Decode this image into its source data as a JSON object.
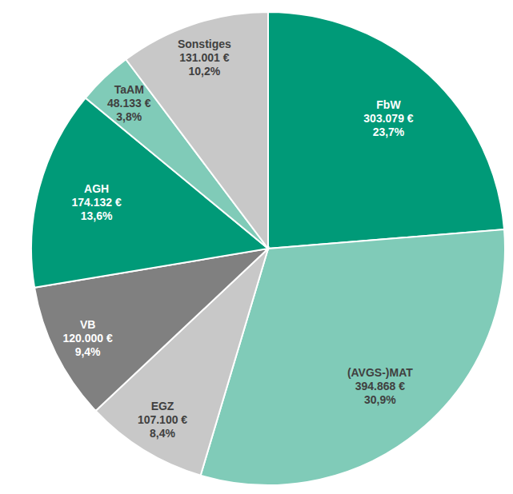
{
  "chart_data": {
    "type": "pie",
    "categories": [
      "FbW",
      "(AVGS-)MAT",
      "EGZ",
      "VB",
      "AGH",
      "TaAM",
      "Sonstiges"
    ],
    "values": [
      303079,
      394868,
      107100,
      120000,
      174132,
      48133,
      131001
    ],
    "value_labels": [
      "303.079 €",
      "394.868 €",
      "107.100 €",
      "120.000 €",
      "174.132 €",
      "48.133 €",
      "131.001 €"
    ],
    "percentages": [
      23.7,
      30.9,
      8.4,
      9.4,
      13.6,
      3.8,
      10.2
    ],
    "percentage_labels": [
      "23,7%",
      "30,9%",
      "8,4%",
      "9,4%",
      "13,6%",
      "3,8%",
      "10,2%"
    ],
    "colors": [
      "#009a78",
      "#80cbb8",
      "#c8c8c8",
      "#808080",
      "#009a78",
      "#80cbb8",
      "#c8c8c8"
    ],
    "data_labels": true
  }
}
